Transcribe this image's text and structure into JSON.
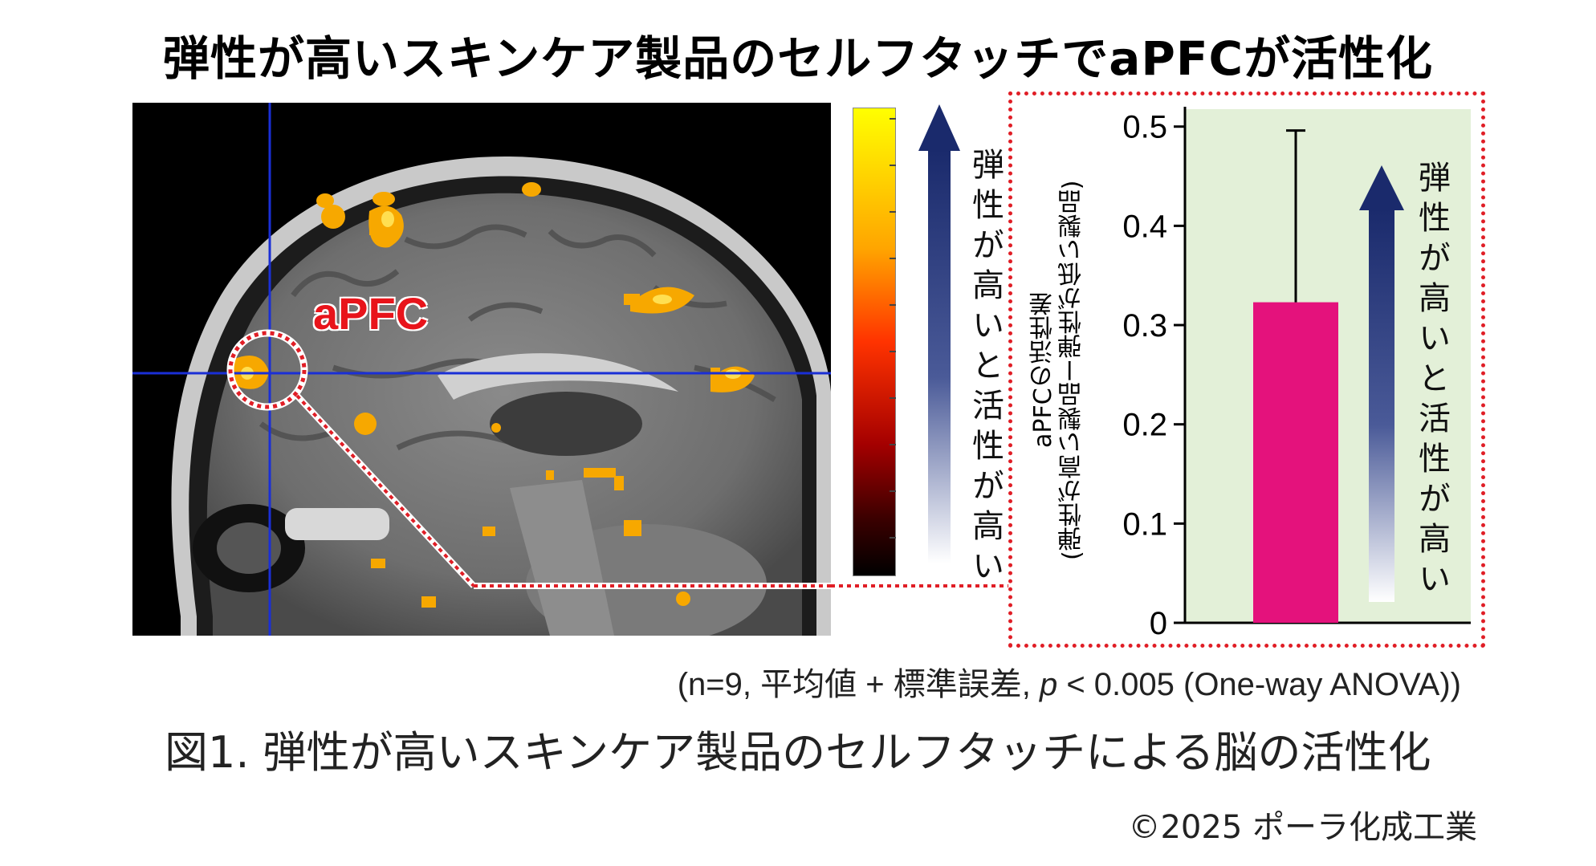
{
  "title": "弾性が高いスキンケア製品のセルフタッチでaPFCが活性化",
  "brain_figure": {
    "region_label": "aPFC",
    "colorbar_label": "弾性が高いと活性が高い"
  },
  "chart_data": {
    "type": "bar",
    "categories": [
      ""
    ],
    "values": [
      0.323
    ],
    "error_upper": [
      0.496
    ],
    "ylabel_line1": "aPFCの活性差",
    "ylabel_line2": "(弾性が高い製品ー弾性が低い製品)",
    "ylim": [
      0,
      0.52
    ],
    "yticks": [
      "0",
      "0.1",
      "0.2",
      "0.3",
      "0.4",
      "0.5"
    ],
    "arrow_label": "弾性が高いと活性が高い",
    "bar_color": "#e4127c",
    "background_color": "#e3f0d8"
  },
  "note": {
    "prefix": "(n=9, 平均値 + 標準誤差, ",
    "p_symbol": "p",
    "suffix": " < 0.005 (One-way ANOVA))"
  },
  "caption": "図1. 弾性が高いスキンケア製品のセルフタッチによる脳の活性化",
  "copyright": "©2025 ポーラ化成工業",
  "colors": {
    "highlight_red": "#e01e26",
    "arrow_navy": "#1a2a6c",
    "crosshair": "#1a2fd6"
  }
}
